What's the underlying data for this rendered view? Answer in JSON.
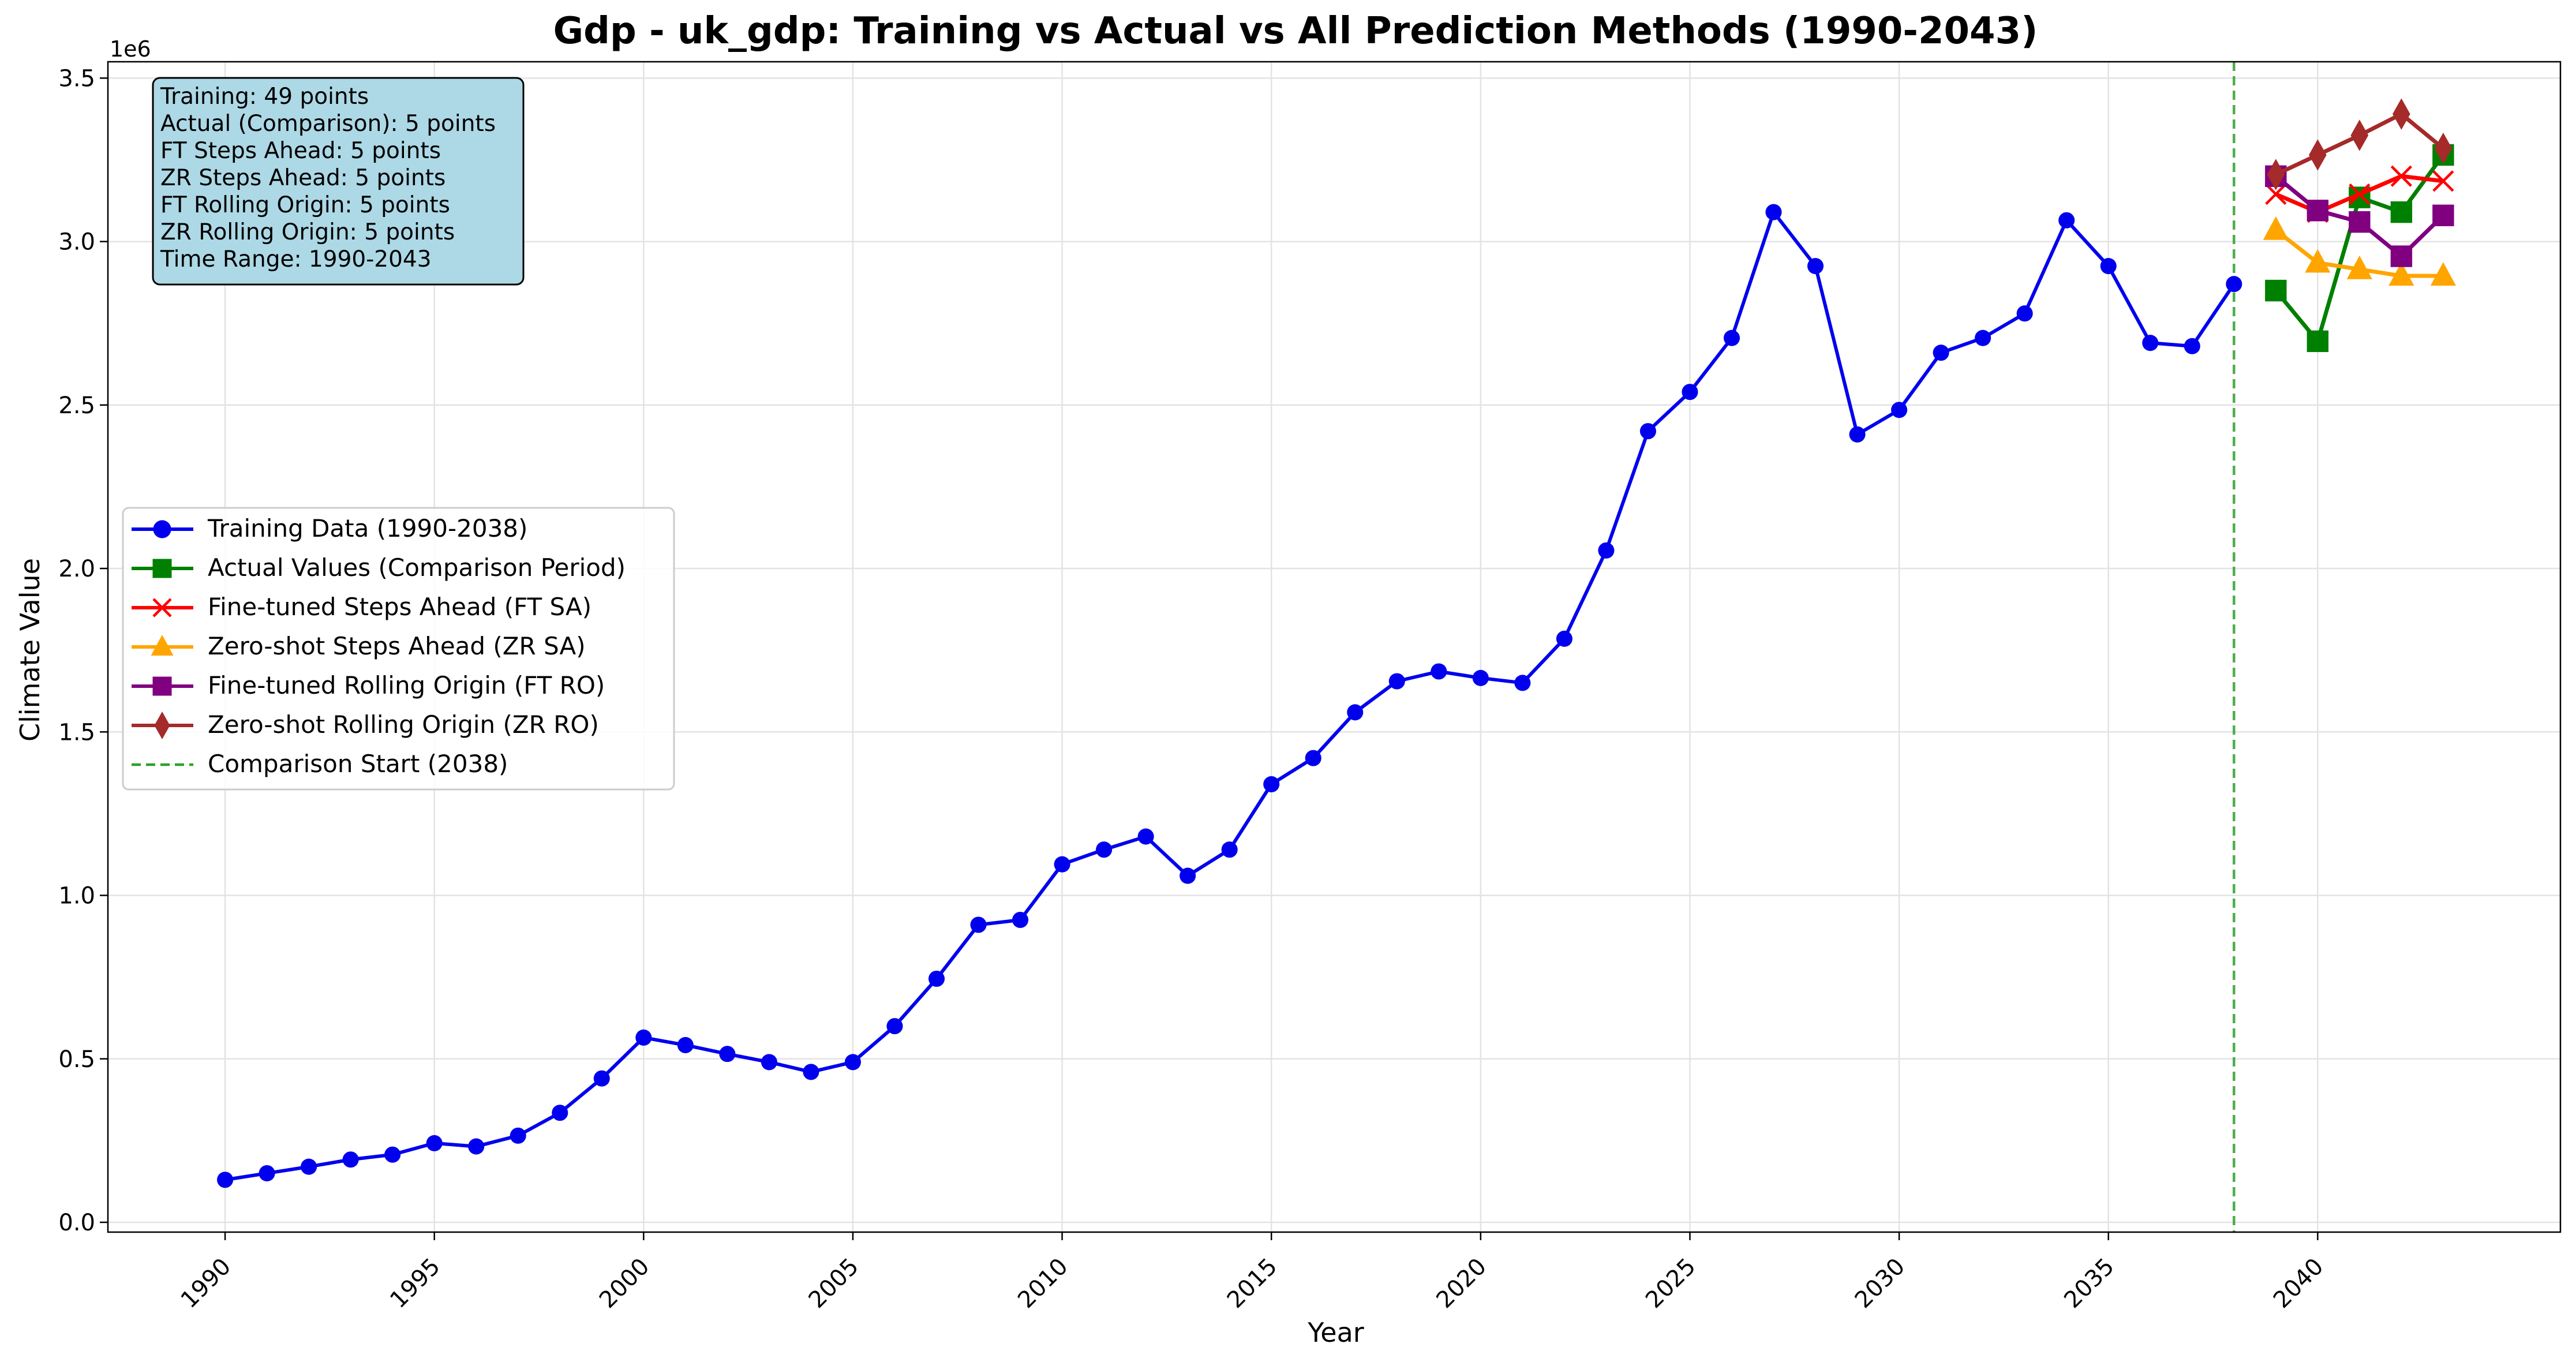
{
  "chart_data": {
    "type": "line",
    "title": "Gdp - uk_gdp: Training vs Actual vs All Prediction Methods (1990-2043)",
    "xlabel": "Year",
    "ylabel": "Climate Value",
    "y_scale_label": "1e6",
    "xlim": [
      1987.2,
      2045.8
    ],
    "ylim": [
      -30000,
      3550000
    ],
    "x_ticks": [
      1990,
      1995,
      2000,
      2005,
      2010,
      2015,
      2020,
      2025,
      2030,
      2035,
      2040
    ],
    "x_tick_labels": [
      "1990",
      "1995",
      "2000",
      "2005",
      "2010",
      "2015",
      "2020",
      "2025",
      "2030",
      "2035",
      "2040"
    ],
    "y_ticks": [
      0,
      500000,
      1000000,
      1500000,
      2000000,
      2500000,
      3000000,
      3500000
    ],
    "y_tick_labels": [
      "0.0",
      "0.5",
      "1.0",
      "1.5",
      "2.0",
      "2.5",
      "3.0",
      "3.5"
    ],
    "grid": true,
    "legend_position": "center-left",
    "vline": {
      "x": 2038,
      "label": "Comparison Start (2038)",
      "color": "#2ca02c"
    },
    "series": [
      {
        "name": "Training Data (1990-2038)",
        "color": "#0000ee",
        "marker": "circle",
        "x": [
          1990,
          1991,
          1992,
          1993,
          1994,
          1995,
          1996,
          1997,
          1998,
          1999,
          2000,
          2001,
          2002,
          2003,
          2004,
          2005,
          2006,
          2007,
          2008,
          2009,
          2010,
          2011,
          2012,
          2013,
          2014,
          2015,
          2016,
          2017,
          2018,
          2019,
          2020,
          2021,
          2022,
          2023,
          2024,
          2025,
          2026,
          2027,
          2028,
          2029,
          2030,
          2031,
          2032,
          2033,
          2034,
          2035,
          2036,
          2037,
          2038
        ],
        "values": [
          130000,
          150000,
          170000,
          192000,
          207000,
          242000,
          232000,
          265000,
          335000,
          440000,
          565000,
          542000,
          515000,
          490000,
          460000,
          490000,
          600000,
          745000,
          910000,
          925000,
          1095000,
          1140000,
          1180000,
          1060000,
          1140000,
          1340000,
          1420000,
          1560000,
          1655000,
          1685000,
          1665000,
          1650000,
          1785000,
          2055000,
          2420000,
          2540000,
          2705000,
          3090000,
          2925000,
          2410000,
          2485000,
          2660000,
          2705000,
          2780000,
          3065000,
          2925000,
          2690000,
          2680000,
          2870000
        ]
      },
      {
        "name": "Actual Values (Comparison Period)",
        "color": "#008000",
        "marker": "square",
        "x": [
          2039,
          2040,
          2041,
          2042,
          2043
        ],
        "values": [
          2850000,
          2695000,
          3135000,
          3090000,
          3265000
        ]
      },
      {
        "name": "Fine-tuned Steps Ahead (FT SA)",
        "color": "#ff0000",
        "marker": "x",
        "x": [
          2039,
          2040,
          2041,
          2042,
          2043
        ],
        "values": [
          3145000,
          3090000,
          3145000,
          3200000,
          3185000
        ]
      },
      {
        "name": "Zero-shot Steps Ahead (ZR SA)",
        "color": "#ffa500",
        "marker": "triangle",
        "x": [
          2039,
          2040,
          2041,
          2042,
          2043
        ],
        "values": [
          3035000,
          2935000,
          2915000,
          2895000,
          2895000
        ]
      },
      {
        "name": "Fine-tuned Rolling Origin (FT RO)",
        "color": "#800080",
        "marker": "square",
        "x": [
          2039,
          2040,
          2041,
          2042,
          2043
        ],
        "values": [
          3200000,
          3095000,
          3060000,
          2955000,
          3080000
        ]
      },
      {
        "name": "Zero-shot Rolling Origin (ZR RO)",
        "color": "#a52a2a",
        "marker": "diamond",
        "x": [
          2039,
          2040,
          2041,
          2042,
          2043
        ],
        "values": [
          3205000,
          3265000,
          3325000,
          3390000,
          3285000
        ]
      }
    ],
    "info_box": {
      "background": "#add8e6",
      "lines": [
        "Training: 49 points",
        "Actual (Comparison): 5 points",
        "FT Steps Ahead: 5 points",
        "ZR Steps Ahead: 5 points",
        "FT Rolling Origin: 5 points",
        "ZR Rolling Origin: 5 points",
        "Time Range: 1990-2043"
      ]
    }
  }
}
